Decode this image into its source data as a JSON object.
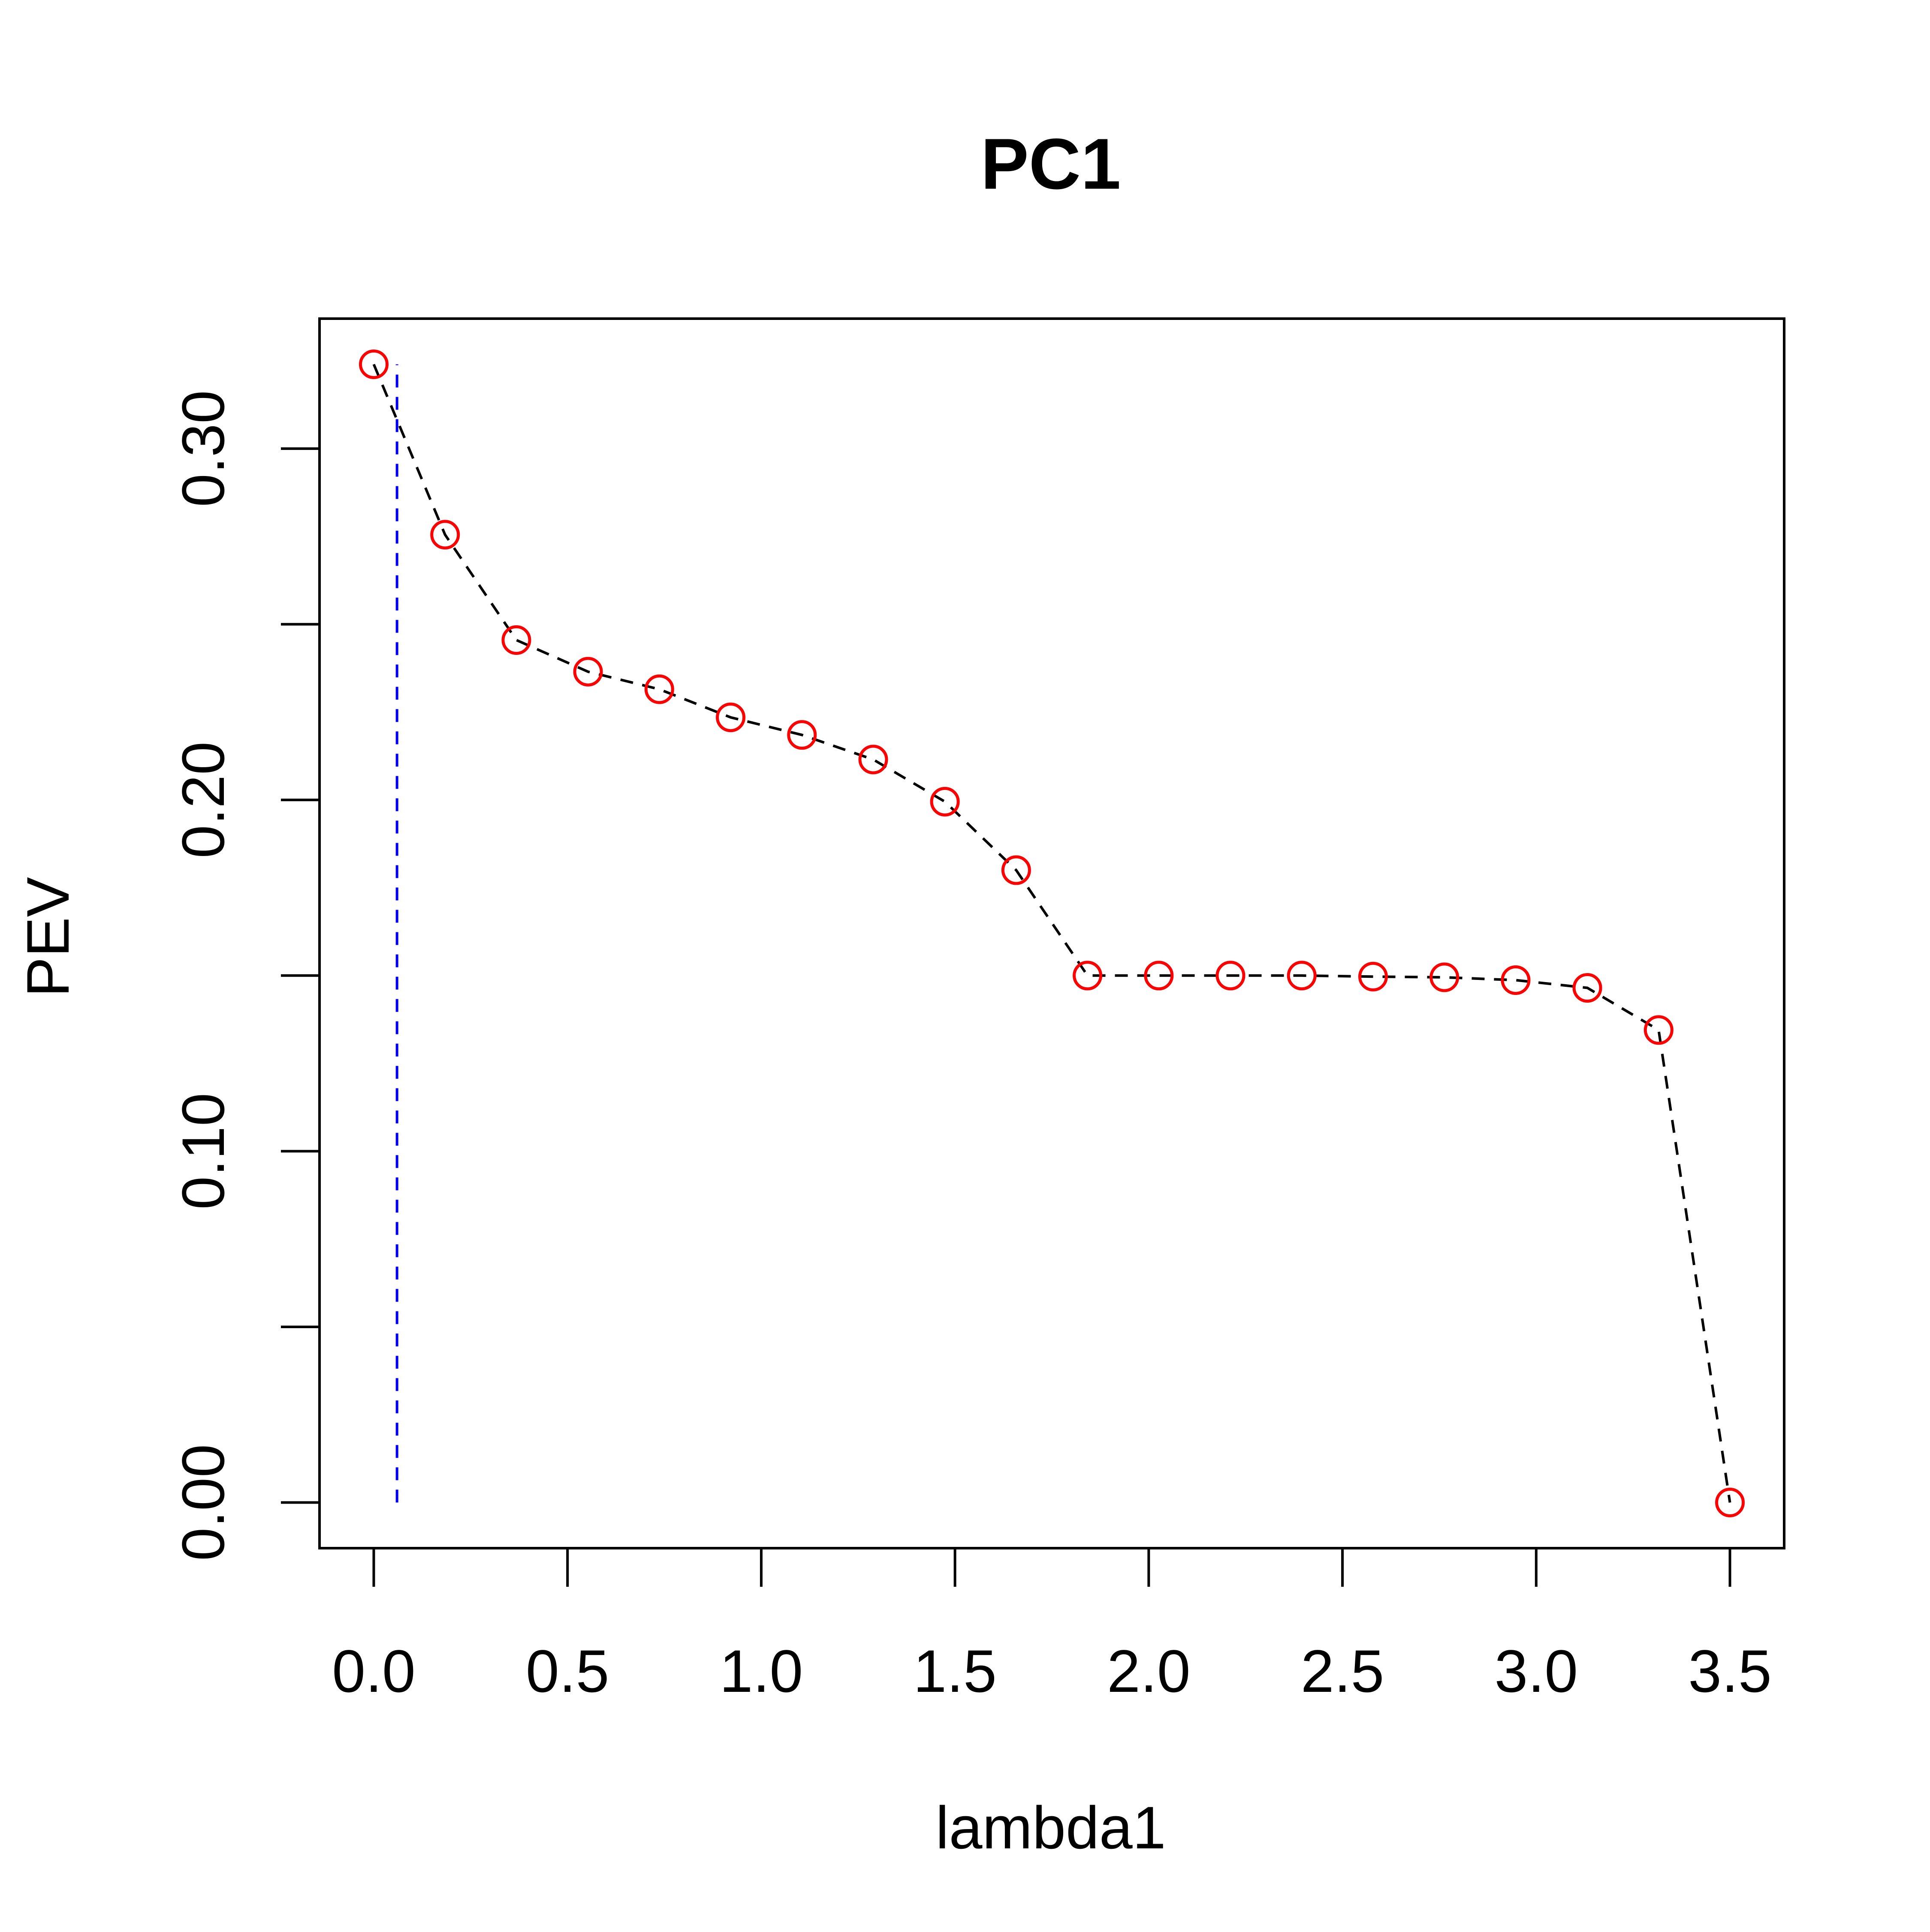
{
  "chart_data": {
    "type": "scatter",
    "title": "PC1",
    "xlabel": "lambda1",
    "ylabel": "PEV",
    "xlim": [
      -0.14,
      3.64
    ],
    "ylim": [
      -0.013,
      0.337
    ],
    "x_ticks": [
      0.0,
      0.5,
      1.0,
      1.5,
      2.0,
      2.5,
      3.0,
      3.5
    ],
    "x_tick_labels": [
      "0.0",
      "0.5",
      "1.0",
      "1.5",
      "2.0",
      "2.5",
      "3.0",
      "3.5"
    ],
    "y_ticks": [
      0.0,
      0.05,
      0.1,
      0.15,
      0.2,
      0.25,
      0.3
    ],
    "y_tick_labels": [
      "0.00",
      "",
      "0.10",
      "",
      "0.20",
      "",
      "0.30"
    ],
    "grid": false,
    "series": [
      {
        "marker": "open-circle",
        "line_style": "dashed",
        "marker_color": "#ff0000",
        "line_color": "#000000",
        "points": [
          {
            "x": 0.0,
            "y": 0.324
          },
          {
            "x": 0.184,
            "y": 0.2755
          },
          {
            "x": 0.368,
            "y": 0.2455
          },
          {
            "x": 0.553,
            "y": 0.2365
          },
          {
            "x": 0.737,
            "y": 0.2315
          },
          {
            "x": 0.921,
            "y": 0.2235
          },
          {
            "x": 1.105,
            "y": 0.2185
          },
          {
            "x": 1.289,
            "y": 0.2115
          },
          {
            "x": 1.474,
            "y": 0.1995
          },
          {
            "x": 1.658,
            "y": 0.18
          },
          {
            "x": 1.842,
            "y": 0.15
          },
          {
            "x": 2.026,
            "y": 0.15
          },
          {
            "x": 2.211,
            "y": 0.15
          },
          {
            "x": 2.395,
            "y": 0.15
          },
          {
            "x": 2.579,
            "y": 0.1497
          },
          {
            "x": 2.763,
            "y": 0.1495
          },
          {
            "x": 2.947,
            "y": 0.1487
          },
          {
            "x": 3.132,
            "y": 0.1465
          },
          {
            "x": 3.316,
            "y": 0.1345
          },
          {
            "x": 3.5,
            "y": 0.0
          }
        ]
      }
    ],
    "reference_line": {
      "orientation": "vertical",
      "x": 0.06,
      "y_from": 0.0,
      "y_to": 0.324,
      "color": "#0000ff",
      "line_style": "dashed"
    }
  }
}
